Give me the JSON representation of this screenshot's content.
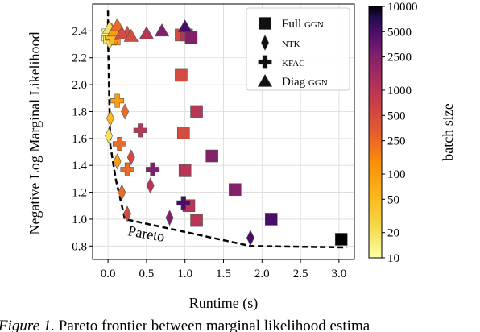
{
  "chart_data": {
    "type": "scatter",
    "xlabel": "Runtime (s)",
    "ylabel": "Negative Log Marginal Likelihood",
    "xlim": [
      -0.2,
      3.2
    ],
    "ylim": [
      0.7,
      2.6
    ],
    "grid": true,
    "legend_position": "top-right",
    "x_ticks": [
      "0.0",
      "0.5",
      "1.0",
      "1.5",
      "2.0",
      "2.5",
      "3.0"
    ],
    "y_ticks": [
      "0.8",
      "1.0",
      "1.2",
      "1.4",
      "1.6",
      "1.8",
      "2.0",
      "2.2",
      "2.4"
    ],
    "legend": [
      {
        "label": "Full ",
        "label_small": "GGN",
        "marker": "square"
      },
      {
        "label": "",
        "label_small": "NTK",
        "marker": "diamond"
      },
      {
        "label": "",
        "label_small": "KFAC",
        "marker": "plus"
      },
      {
        "label": "Diag ",
        "label_small": "GGN",
        "marker": "triangle"
      }
    ],
    "colorbar": {
      "label": "batch size",
      "scale": "log",
      "range": [
        10,
        10000
      ],
      "ticks": [
        "10",
        "20",
        "50",
        "100",
        "250",
        "500",
        "1000",
        "2500",
        "5000",
        "10000"
      ]
    },
    "pareto_label": "Pareto",
    "pareto_frontier": [
      [
        0.0,
        2.55
      ],
      [
        0.0,
        2.35
      ],
      [
        0.03,
        1.55
      ],
      [
        0.1,
        1.3
      ],
      [
        0.22,
        1.0
      ],
      [
        1.85,
        0.8
      ],
      [
        3.1,
        0.79
      ]
    ],
    "series": [
      {
        "marker": "square",
        "points": [
          [
            0.0,
            2.37,
            10
          ],
          [
            0.02,
            2.35,
            20
          ],
          [
            0.05,
            2.39,
            50
          ],
          [
            0.08,
            2.34,
            100
          ],
          [
            0.95,
            2.37,
            500
          ],
          [
            1.02,
            2.37,
            1000
          ],
          [
            1.08,
            2.35,
            2500
          ],
          [
            0.95,
            2.07,
            500
          ],
          [
            0.98,
            1.64,
            500
          ],
          [
            1.0,
            1.36,
            1000
          ],
          [
            1.05,
            1.1,
            1000
          ],
          [
            1.15,
            1.8,
            1000
          ],
          [
            1.15,
            0.99,
            1000
          ],
          [
            1.35,
            1.47,
            2500
          ],
          [
            1.65,
            1.22,
            2500
          ],
          [
            2.12,
            1.0,
            5000
          ],
          [
            3.03,
            0.85,
            10000
          ]
        ]
      },
      {
        "marker": "diamond",
        "points": [
          [
            0.0,
            2.38,
            10
          ],
          [
            0.02,
            2.32,
            20
          ],
          [
            0.05,
            2.4,
            50
          ],
          [
            0.1,
            2.35,
            100
          ],
          [
            0.15,
            2.4,
            250
          ],
          [
            0.25,
            2.38,
            500
          ],
          [
            0.03,
            1.75,
            50
          ],
          [
            0.01,
            1.62,
            20
          ],
          [
            0.12,
            1.43,
            100
          ],
          [
            0.18,
            1.2,
            250
          ],
          [
            0.22,
            1.8,
            250
          ],
          [
            0.3,
            1.46,
            500
          ],
          [
            0.25,
            1.04,
            500
          ],
          [
            0.55,
            1.25,
            1000
          ],
          [
            0.8,
            1.01,
            2500
          ],
          [
            1.85,
            0.86,
            5000
          ]
        ]
      },
      {
        "marker": "plus",
        "points": [
          [
            0.0,
            2.38,
            10
          ],
          [
            0.05,
            2.35,
            50
          ],
          [
            0.12,
            1.88,
            100
          ],
          [
            0.15,
            1.56,
            250
          ],
          [
            0.25,
            1.37,
            250
          ],
          [
            0.42,
            1.66,
            1000
          ],
          [
            0.58,
            1.37,
            2500
          ],
          [
            0.98,
            1.12,
            5000
          ]
        ]
      },
      {
        "marker": "triangle",
        "points": [
          [
            0.02,
            2.42,
            20
          ],
          [
            0.08,
            2.4,
            100
          ],
          [
            0.12,
            2.44,
            250
          ],
          [
            0.18,
            2.38,
            500
          ],
          [
            0.3,
            2.36,
            500
          ],
          [
            0.5,
            2.38,
            1000
          ],
          [
            0.7,
            2.4,
            2500
          ],
          [
            1.0,
            2.43,
            5000
          ]
        ]
      }
    ]
  },
  "caption": {
    "prefix": "Figure 1.",
    "text": " Pareto frontier between marginal likelihood estima"
  }
}
